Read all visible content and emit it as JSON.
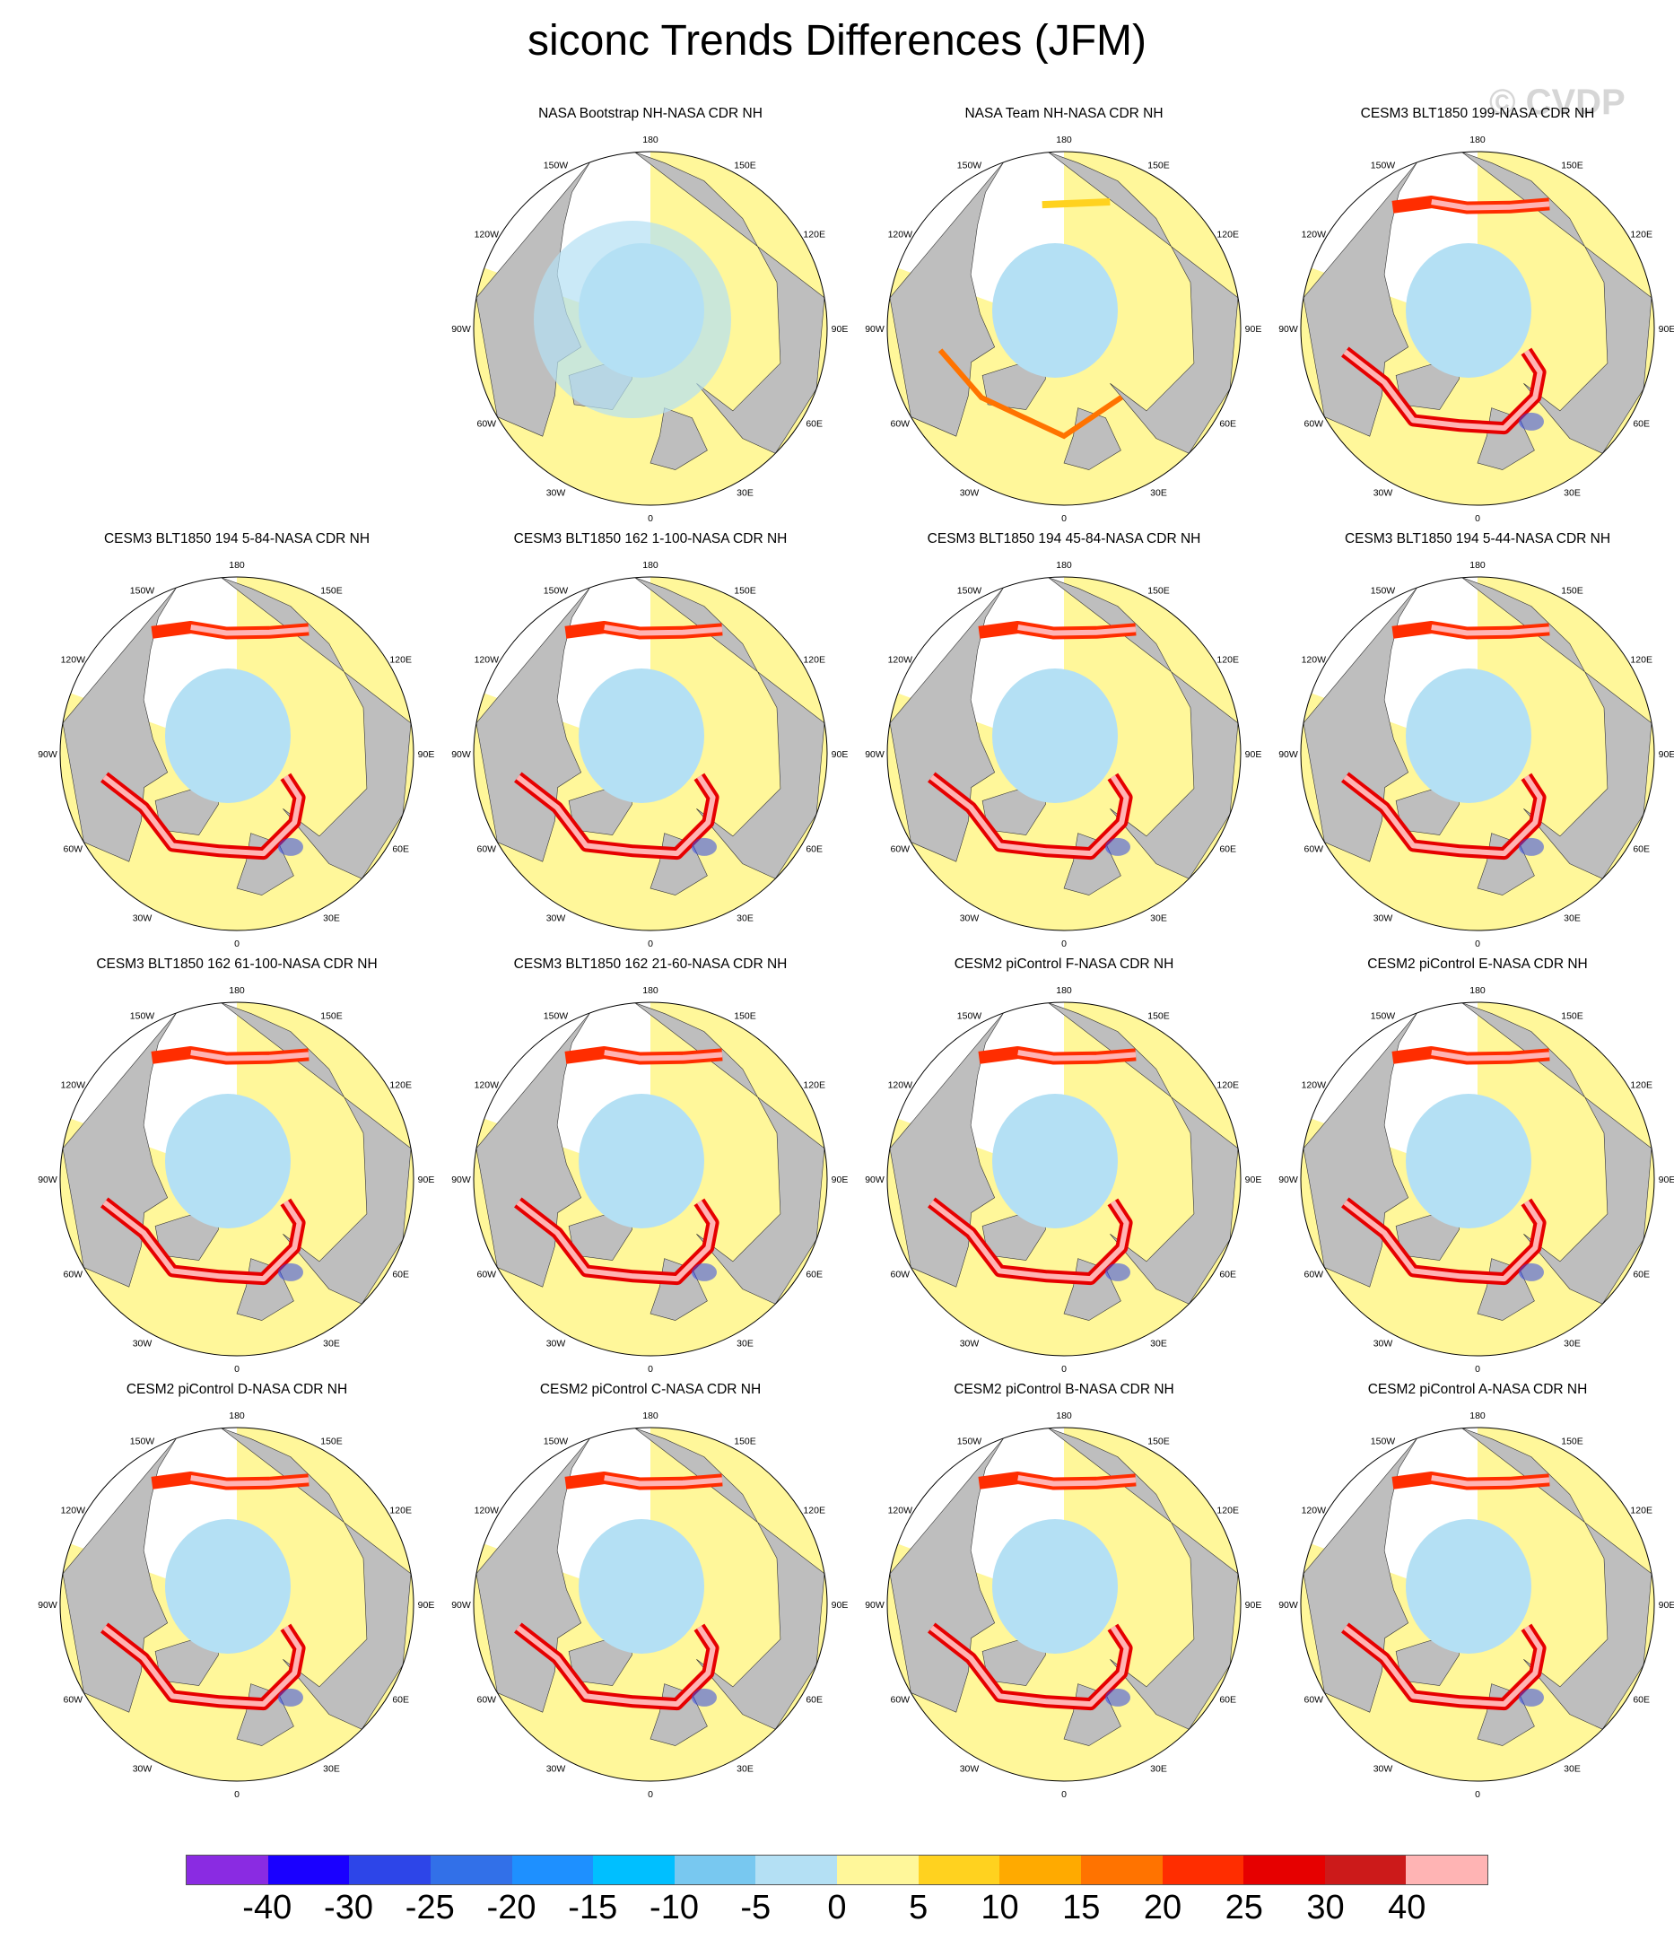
{
  "title": "siconc Trends Differences (JFM)",
  "watermark": "© CVDP",
  "panels": [
    {
      "title": "",
      "empty": true
    },
    {
      "title": "NASA Bootstrap NH-NASA CDR NH",
      "style": "obs"
    },
    {
      "title": "NASA Team NH-NASA CDR NH",
      "style": "obs2"
    },
    {
      "title": "CESM3 BLT1850 199-NASA CDR NH",
      "style": "model"
    },
    {
      "title": "CESM3 BLT1850 194 5-84-NASA CDR NH",
      "style": "model"
    },
    {
      "title": "CESM3 BLT1850 162 1-100-NASA CDR NH",
      "style": "model"
    },
    {
      "title": "CESM3 BLT1850 194 45-84-NASA CDR NH",
      "style": "model"
    },
    {
      "title": "CESM3 BLT1850 194 5-44-NASA CDR NH",
      "style": "model"
    },
    {
      "title": "CESM3 BLT1850 162 61-100-NASA CDR NH",
      "style": "model"
    },
    {
      "title": "CESM3 BLT1850 162 21-60-NASA CDR NH",
      "style": "model"
    },
    {
      "title": "CESM2 piControl F-NASA CDR NH",
      "style": "model"
    },
    {
      "title": "CESM2 piControl E-NASA CDR NH",
      "style": "model"
    },
    {
      "title": "CESM2 piControl D-NASA CDR NH",
      "style": "model"
    },
    {
      "title": "CESM2 piControl C-NASA CDR NH",
      "style": "model"
    },
    {
      "title": "CESM2 piControl B-NASA CDR NH",
      "style": "model"
    },
    {
      "title": "CESM2 piControl A-NASA CDR NH",
      "style": "model"
    }
  ],
  "longitude_labels": {
    "lon_0": "0",
    "lon_30e": "30E",
    "lon_60e": "60E",
    "lon_90e": "90E",
    "lon_120e": "120E",
    "lon_150e": "150E",
    "lon_180": "180",
    "lon_150w": "150W",
    "lon_120w": "120W",
    "lon_90w": "90W",
    "lon_60w": "60W",
    "lon_30w": "30W"
  },
  "colorbar": {
    "colors": [
      "#8a2be2",
      "#1a00ff",
      "#2d45e8",
      "#3270e8",
      "#1e90ff",
      "#00bfff",
      "#78c8f0",
      "#b4e0f4",
      "#fff79a",
      "#ffd21f",
      "#ffaa00",
      "#ff7300",
      "#ff2d00",
      "#e60000",
      "#cc1a1a",
      "#ffb4b4"
    ],
    "labels": [
      "-40",
      "-30",
      "-25",
      "-20",
      "-15",
      "-10",
      "-5",
      "0",
      "5",
      "10",
      "15",
      "20",
      "25",
      "30",
      "40"
    ]
  },
  "legend_colors": {
    "land": "#bebebe",
    "missing": "#ffffff"
  }
}
